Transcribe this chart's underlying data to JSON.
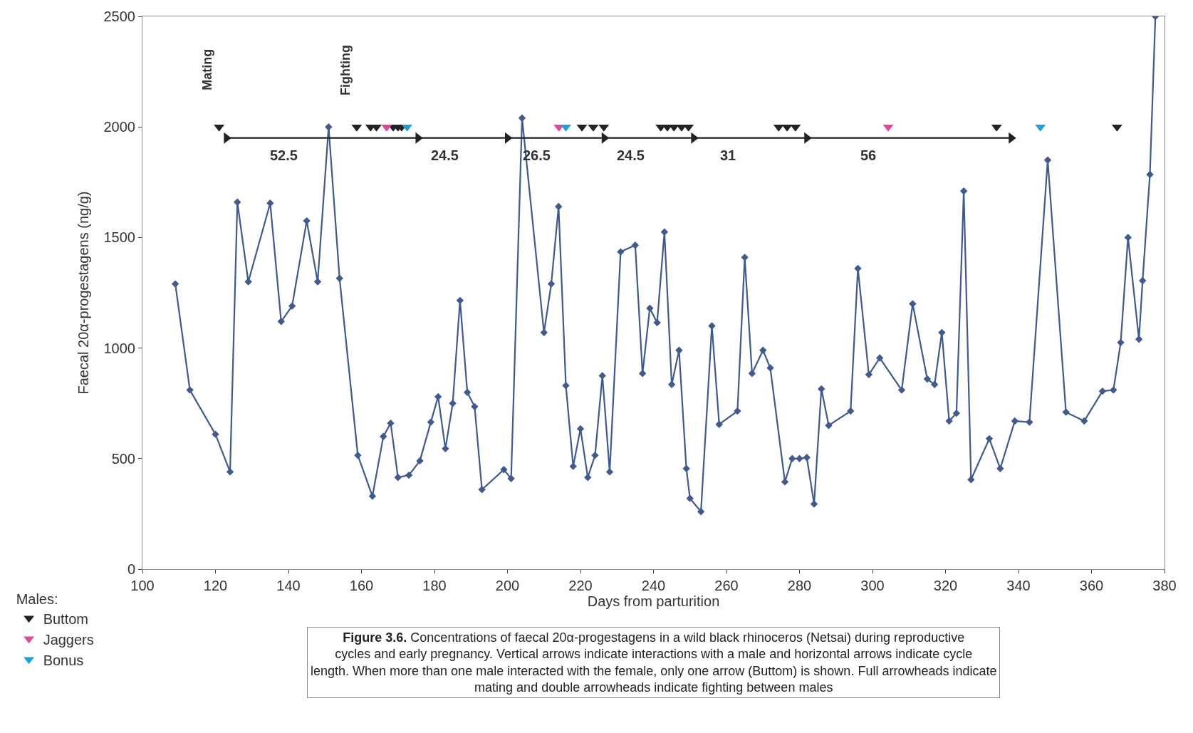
{
  "chart_data": {
    "type": "line",
    "xlabel": "Days from parturition",
    "ylabel": "Faecal 20α-progestagens (ng/g)",
    "legend_title": "Males:",
    "legend": "bottom left",
    "xlim": [
      100,
      380
    ],
    "xticks": [
      100,
      120,
      140,
      160,
      180,
      200,
      220,
      240,
      260,
      280,
      300,
      320,
      340,
      360,
      380
    ],
    "ylim": [
      0,
      2500
    ],
    "yticks": [
      0,
      500,
      1000,
      1500,
      2000,
      2500
    ],
    "series": [
      {
        "color": "#3f5a8f",
        "marker": "diamond",
        "x": [
          109,
          113,
          120,
          124,
          126,
          129,
          135,
          138,
          141,
          145,
          148,
          151,
          154,
          159,
          163,
          166,
          168,
          170,
          173,
          176,
          179,
          181,
          183,
          185,
          187,
          189,
          191,
          193,
          199,
          201,
          204,
          210,
          212,
          214,
          216,
          218,
          220,
          222,
          224,
          226,
          228,
          231,
          235,
          237,
          239,
          241,
          243,
          245,
          247,
          249,
          250,
          253,
          256,
          258,
          263,
          265,
          267,
          270,
          272,
          276,
          278,
          280,
          282,
          284,
          286,
          288,
          294,
          296,
          299,
          302,
          308,
          311,
          315,
          317,
          319,
          321,
          323,
          325,
          327,
          332,
          335,
          339,
          343,
          348,
          353,
          358,
          363,
          366,
          368,
          370,
          373,
          374,
          376,
          377.5
        ],
        "values": [
          1290,
          810,
          610,
          440,
          1660,
          1300,
          1655,
          1120,
          1190,
          1575,
          1300,
          2000,
          1315,
          515,
          330,
          600,
          660,
          415,
          425,
          490,
          665,
          780,
          545,
          750,
          1215,
          800,
          735,
          360,
          450,
          410,
          2040,
          1070,
          1290,
          1640,
          830,
          465,
          635,
          415,
          515,
          875,
          440,
          1435,
          1465,
          885,
          1180,
          1115,
          1525,
          835,
          990,
          455,
          320,
          260,
          1100,
          655,
          715,
          1410,
          885,
          990,
          910,
          395,
          500,
          500,
          505,
          295,
          815,
          650,
          715,
          1360,
          880,
          955,
          810,
          1200,
          860,
          835,
          1070,
          670,
          705,
          1710,
          405,
          590,
          455,
          670,
          665,
          1850,
          710,
          670,
          805,
          810,
          1025,
          1500,
          1040,
          1305,
          1785,
          2500
        ]
      },
      {
        "type": "scatter",
        "name": "Buttom",
        "color": "#222222",
        "marker": "triangle",
        "x": [
          121,
          158.7,
          162.5,
          164.1,
          168.7,
          170,
          171,
          220.4,
          223.5,
          226.4,
          242,
          243.8,
          245.6,
          247.7,
          249.6,
          274.3,
          276.6,
          278.9,
          334,
          367
        ],
        "values": [
          2000,
          2000,
          2000,
          2000,
          2000,
          2000,
          2000,
          2000,
          2000,
          2000,
          2000,
          2000,
          2000,
          2000,
          2000,
          2000,
          2000,
          2000,
          2000,
          2000
        ]
      },
      {
        "type": "scatter",
        "name": "Jaggers",
        "color": "#e0479a",
        "marker": "triangle",
        "x": [
          166.9,
          214.1,
          304.3
        ],
        "values": [
          2000,
          2000,
          2000
        ]
      },
      {
        "type": "scatter",
        "name": "Bonus",
        "color": "#1ea0d8",
        "marker": "triangle",
        "x": [
          172.5,
          216,
          346
        ],
        "values": [
          2000,
          2000,
          2000
        ]
      },
      {
        "type": "line",
        "color": "#222222",
        "marker": "triangle",
        "x": [
          123,
          175.5,
          200,
          226.5,
          251,
          282,
          338
        ],
        "values": [
          1950,
          1950,
          1950,
          1950,
          1950,
          1950,
          1950
        ]
      }
    ],
    "annotations": [
      "52.5",
      "24.5",
      "26.5",
      "24.5",
      "31",
      "56",
      "Mating",
      "Fighting",
      "**Figure 3.6.** Concentrations of faecal 20α-progestagens in a wild black rhinoceros (Netsai) during reproductive cycles and early pregnancy. Vertical arrows indicate interactions with a male and horizontal arrows indicate cycle length. When more than one male interacted with the female, only one arrow (Buttom) is shown. Full arrowheads indicate mating and double arrowheads indicate fighting between males"
    ]
  }
}
